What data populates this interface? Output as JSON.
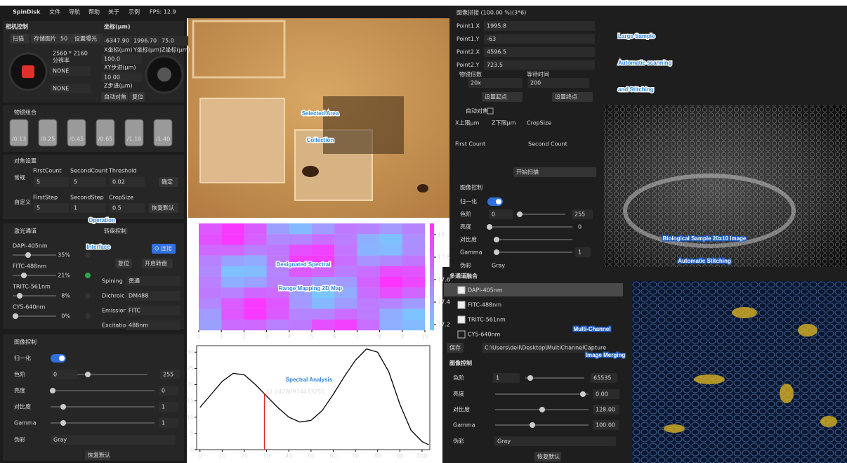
{
  "menu": {
    "app": "SpinDisk",
    "items": [
      "文件",
      "导航",
      "帮助",
      "关于",
      "示例"
    ],
    "fps": "FPS: 12.9"
  },
  "camera": {
    "title": "相机控制",
    "buttons": [
      "扫描",
      "存储图片",
      "50",
      "设置曝光"
    ],
    "resolution": "2560 * 2160",
    "resolution_label": "分辨率",
    "options": [
      "NONE",
      "NONE"
    ],
    "coord_title": "坐标(μm)",
    "coords": [
      "-6347.90",
      "1996.70",
      "75.0"
    ],
    "coord_labels": [
      "X坐标(μm)",
      "Y坐标(μm)",
      "Z坐标(μm)"
    ],
    "xy_step": "100.0",
    "xy_step_label": "XY步进(μm)",
    "z_step": "10.00",
    "z_step_label": "Z步进(μm)",
    "autofocus": "自动对焦",
    "reset": "复位"
  },
  "objectives": {
    "title": "物镜组合",
    "items": [
      "/0.13",
      "/0.25",
      "/0.45",
      "/0.65",
      "/1.10",
      "/1.40"
    ]
  },
  "focus": {
    "title": "对焦设置",
    "modes": [
      "常规",
      "自定义"
    ],
    "row1": {
      "labels": [
        "FirstCount",
        "SecondCount",
        "Threshold"
      ],
      "values": [
        "5",
        "5",
        "0.02"
      ],
      "button": "确定"
    },
    "row2": {
      "labels": [
        "FirstStep",
        "SecondStep",
        "CropSize"
      ],
      "values": [
        "5",
        "1",
        "0.5"
      ],
      "button": "恢复默认"
    }
  },
  "laser": {
    "title": "激光通道",
    "channels": [
      {
        "name": "DAPI-405nm",
        "level": "35%"
      },
      {
        "name": "FITC-488nm",
        "level": "21%"
      },
      {
        "name": "TRITC-561nm",
        "level": "8%"
      },
      {
        "name": "CY5-640nm",
        "level": "0%"
      }
    ]
  },
  "turntable": {
    "title": "转盘控制",
    "connect": "O 连接",
    "reset": "复位",
    "start": "开启转盘",
    "settings": [
      {
        "label": "Spining",
        "value": "贯通"
      },
      {
        "label": "Dichroic",
        "value": "DM488"
      },
      {
        "label": "Emission",
        "value": "FITC"
      },
      {
        "label": "Excitation",
        "value": "488nm"
      }
    ]
  },
  "image_control": {
    "title": "图像控制",
    "normalize": "归一化",
    "levels_label": "色阶",
    "levels": [
      "0",
      "255"
    ],
    "brightness_label": "亮度",
    "brightness": "0",
    "contrast_label": "对比度",
    "contrast": "1",
    "gamma_label": "Gamma",
    "gamma": "1",
    "pseudo_label": "伪彩",
    "pseudo": "Gray",
    "reset": "恢复默认"
  },
  "stitch_window": {
    "title": "图像拼接 (100.00 %)(3*6)",
    "points": [
      {
        "label": "Point1.X",
        "value": "1995.8"
      },
      {
        "label": "Point1.Y",
        "value": "-63"
      },
      {
        "label": "Point2.X",
        "value": "4596.5"
      },
      {
        "label": "Point2.Y",
        "value": "723.5"
      }
    ],
    "objective_label": "物镜倍数",
    "objective": "20x",
    "wait_label": "等待时间",
    "wait": "200",
    "set_start": "设置起点",
    "set_end": "设置终点",
    "autofocus": "自动对焦",
    "fields": [
      "X上限μm",
      "Z下限μm",
      "CropSize",
      "First Count",
      "Second Count"
    ],
    "start_scan": "开始扫描",
    "image_title": "图像控制",
    "normalize": "归一化",
    "levels_label": "色阶",
    "levels": [
      "0",
      "255"
    ],
    "brightness_label": "亮度",
    "brightness": "0",
    "contrast_label": "对比度",
    "gamma_label": "Gamma",
    "gamma": "1",
    "pseudo_label": "伪彩",
    "pseudo": "Gray"
  },
  "merge_window": {
    "title": "多通道融合",
    "channels": [
      "DAPI-405nm",
      "FITC-488nm",
      "TRITC-561nm",
      "CY5-640nm"
    ],
    "save": "保存",
    "path": "C:\\Users\\dell\\Desktop\\MultiChannelCapture",
    "image_title": "图像控制",
    "levels_label": "色阶",
    "levels": [
      "1",
      "65535"
    ],
    "brightness_label": "亮度",
    "brightness": "0.00",
    "contrast_label": "对比度",
    "contrast": "128.00",
    "gamma_label": "Gamma",
    "gamma": "100.00",
    "pseudo_label": "伪彩",
    "pseudo": "Gray",
    "reset": "恢复默认"
  },
  "map": {
    "xlim": [
      0,
      10
    ],
    "xticks": [
      0,
      1,
      2,
      3,
      4,
      5,
      6,
      7,
      8,
      9,
      10
    ],
    "clim": [
      17.15,
      18.1
    ],
    "cticks": [
      17.2,
      17.4,
      17.6,
      17.8,
      18
    ]
  },
  "spectrum": {
    "type": "line",
    "color": "#000000",
    "x": [
      0,
      5,
      10,
      15,
      20,
      25,
      30,
      35,
      40,
      45,
      50,
      55,
      60,
      65,
      70,
      75,
      80,
      85,
      90,
      95,
      100,
      103
    ],
    "values": [
      13,
      17,
      21,
      23.5,
      23,
      20,
      16.5,
      13,
      10,
      8.5,
      9,
      12,
      17,
      22.5,
      27.5,
      31,
      30,
      24,
      14,
      6,
      2.5,
      1.5
    ],
    "xlim": [
      -1.5,
      103.5
    ],
    "ylim": [
      0,
      32
    ],
    "xticks": [
      0,
      10,
      20,
      30,
      40,
      50,
      60,
      70,
      80,
      90,
      100
    ],
    "yticks": [
      0,
      5,
      10,
      15,
      20,
      25,
      30
    ],
    "marker": {
      "x": 29,
      "y": 17.24280924453255
    }
  },
  "overlays": {
    "large_sample": [
      "Large Sample",
      "Automatic scanning",
      "and Stitching"
    ],
    "selected_area": [
      "Selected Area",
      "Collection"
    ],
    "operation": [
      "Operation",
      "Interface"
    ],
    "mapping": [
      "Designated Spectral",
      "Range Mapping 2D Map"
    ],
    "spectral": [
      "Spectral Analysis"
    ],
    "biological": [
      "Biological Sample 20x10 Image",
      "Automatic Stitching"
    ],
    "multichannel": [
      "Multi-Channel",
      "Image Merging"
    ]
  }
}
